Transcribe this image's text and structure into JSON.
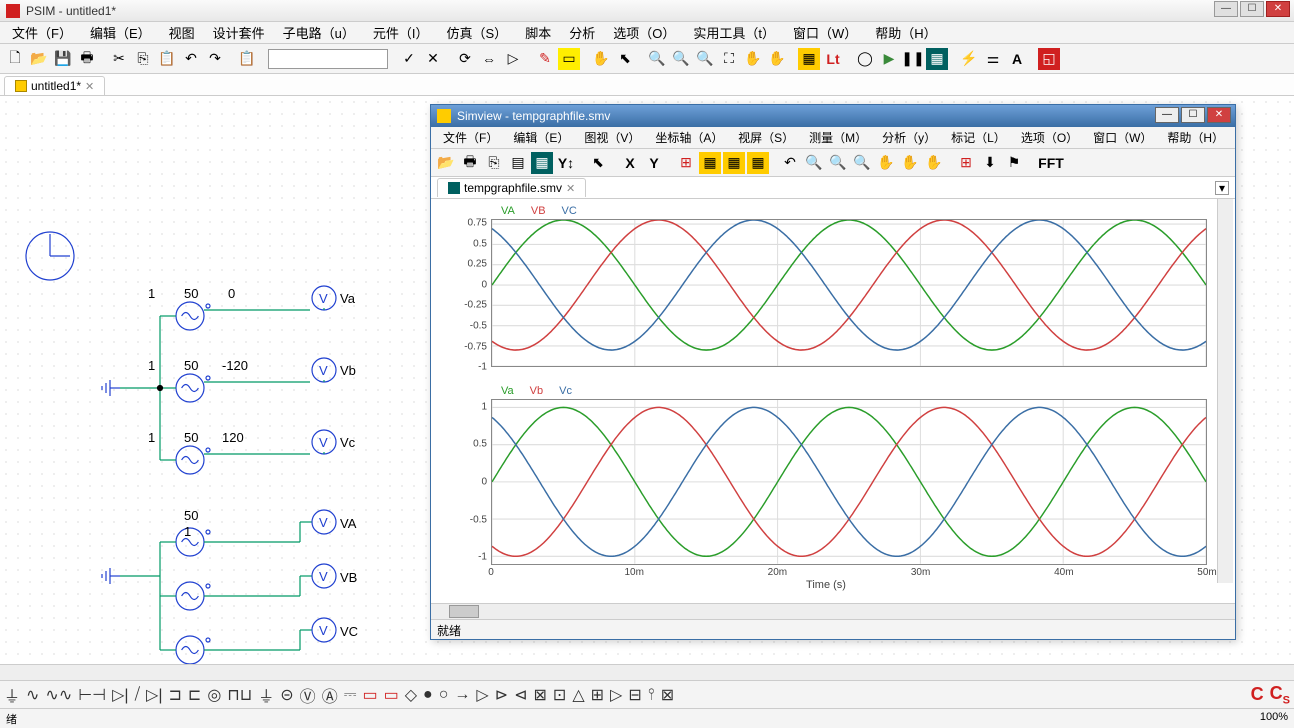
{
  "main": {
    "title": "PSIM - untitled1*",
    "menu": [
      "文件（F）",
      "编辑（E）",
      "视图",
      "设计套件",
      "子电路（u）",
      "元件（I）",
      "仿真（S）",
      "脚本",
      "分析",
      "选项（O）",
      "实用工具（t）",
      "窗口（W）",
      "帮助（H）"
    ],
    "tab": "untitled1*",
    "status_left": "绪",
    "status_right": "100%"
  },
  "circuit": {
    "src1": {
      "amp": "1",
      "freq": "50",
      "phase": "0",
      "probe": "Va"
    },
    "src2": {
      "amp": "1",
      "freq": "50",
      "phase": "-120",
      "probe": "Vb"
    },
    "src3": {
      "amp": "1",
      "freq": "50",
      "phase": "120",
      "probe": "Vc"
    },
    "src4": {
      "freq": "50",
      "amp": "1",
      "probe": "VA"
    },
    "src5": {
      "probe": "VB"
    },
    "src6": {
      "probe": "VC"
    }
  },
  "simview": {
    "title": "Simview - tempgraphfile.smv",
    "menu": [
      "文件（F）",
      "编辑（E）",
      "图视（V）",
      "坐标轴（A）",
      "视屏（S）",
      "测量（M）",
      "分析（y）",
      "标记（L）",
      "选项（O）",
      "窗口（W）",
      "帮助（H）"
    ],
    "tab": "tempgraphfile.smv",
    "status": "就绪",
    "fft_btn": "FFT",
    "xaxis_title": "Time (s)",
    "plot1": {
      "legend": [
        {
          "name": "VA",
          "color": "#2a9d2a"
        },
        {
          "name": "VB",
          "color": "#d04040"
        },
        {
          "name": "VC",
          "color": "#3a6ea5"
        }
      ],
      "ylim": [
        -1,
        0.8
      ],
      "yticks": [
        -1,
        -0.75,
        -0.5,
        -0.25,
        0,
        0.25,
        0.5,
        0.75
      ],
      "series": [
        {
          "color": "#2a9d2a",
          "amp": 0.8,
          "freq": 50,
          "phase": 0
        },
        {
          "color": "#d04040",
          "amp": 0.8,
          "freq": 50,
          "phase": -120
        },
        {
          "color": "#3a6ea5",
          "amp": 0.8,
          "freq": 50,
          "phase": 120
        }
      ]
    },
    "plot2": {
      "legend": [
        {
          "name": "Va",
          "color": "#2a9d2a"
        },
        {
          "name": "Vb",
          "color": "#d04040"
        },
        {
          "name": "Vc",
          "color": "#3a6ea5"
        }
      ],
      "ylim": [
        -1.1,
        1.1
      ],
      "yticks": [
        -1,
        -0.5,
        0,
        0.5,
        1
      ],
      "series": [
        {
          "color": "#2a9d2a",
          "amp": 1,
          "freq": 50,
          "phase": 0
        },
        {
          "color": "#d04040",
          "amp": 1,
          "freq": 50,
          "phase": -120
        },
        {
          "color": "#3a6ea5",
          "amp": 1,
          "freq": 50,
          "phase": 120
        }
      ]
    },
    "xlim": [
      0,
      0.05
    ],
    "xticks": [
      {
        "v": 0,
        "l": "0"
      },
      {
        "v": 0.01,
        "l": "10m"
      },
      {
        "v": 0.02,
        "l": "20m"
      },
      {
        "v": 0.03,
        "l": "30m"
      },
      {
        "v": 0.04,
        "l": "40m"
      },
      {
        "v": 0.05,
        "l": "50m"
      }
    ]
  },
  "colors": {
    "wire_green": "#009966",
    "wire_blue": "#2040d0",
    "red": "#d02020"
  }
}
